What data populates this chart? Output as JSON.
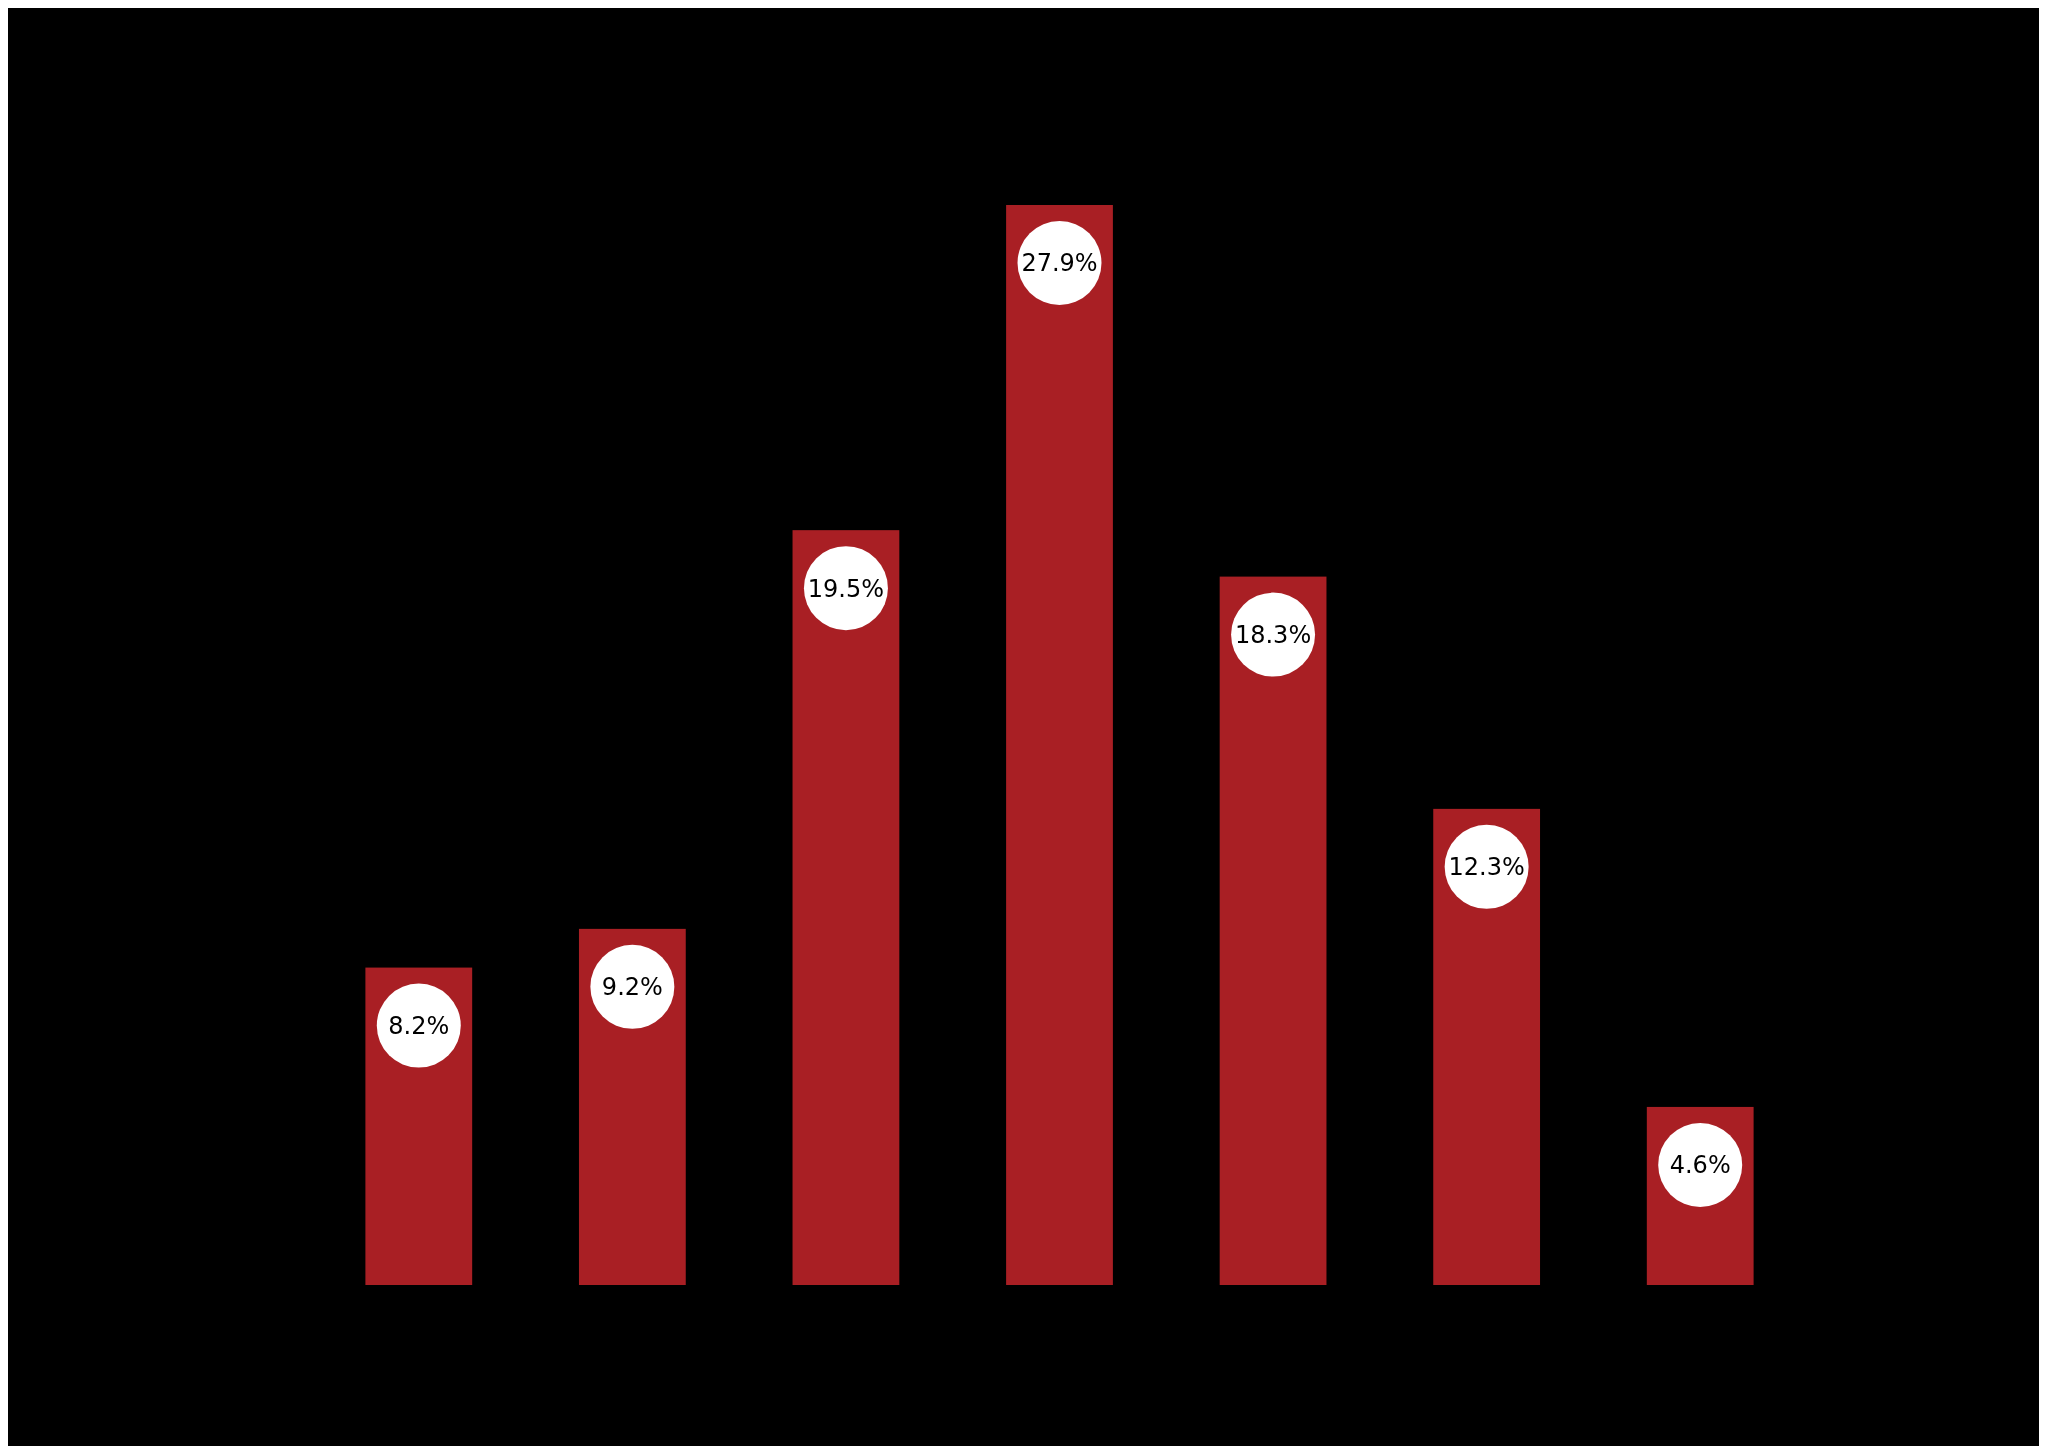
{
  "chart_data": {
    "type": "bar",
    "categories": [
      null,
      null,
      null,
      null,
      null,
      null,
      null
    ],
    "values": [
      8.2,
      9.2,
      19.5,
      27.9,
      18.3,
      12.3,
      4.6
    ],
    "value_labels": [
      "8.2%",
      "9.2%",
      "19.5%",
      "27.9%",
      "18.3%",
      "12.3%",
      "4.6%"
    ],
    "color": "#a91f24",
    "ylim": [
      0,
      27.9
    ]
  }
}
